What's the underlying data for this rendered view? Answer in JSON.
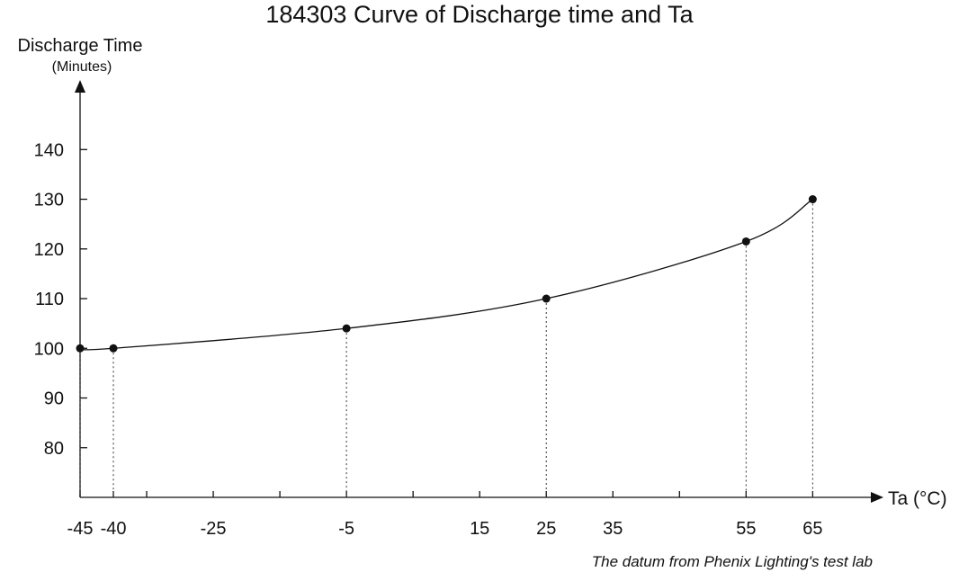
{
  "chart_data": {
    "type": "line",
    "title": "184303 Curve of Discharge time and Ta",
    "ylabel": "Discharge Time",
    "ylabel_unit": "(Minutes)",
    "xlabel": "Ta (°C)",
    "footnote": "The datum from Phenix Lighting's test lab",
    "x_ticks": [
      -45,
      -40,
      -25,
      -5,
      15,
      25,
      35,
      55,
      65
    ],
    "x_minor_ticks": [
      -35,
      -15,
      5,
      45
    ],
    "y_ticks": [
      80,
      90,
      100,
      110,
      120,
      130,
      140
    ],
    "xlim": [
      -45,
      74
    ],
    "ylim": [
      70,
      152
    ],
    "grid": false,
    "series": [
      {
        "x": [
          -45,
          -40,
          -5,
          25,
          55,
          65
        ],
        "y": [
          100,
          100,
          104,
          110,
          121.5,
          130
        ]
      }
    ],
    "dotted_drop_lines": true,
    "line_color": "#111111",
    "marker_color": "#111111"
  }
}
